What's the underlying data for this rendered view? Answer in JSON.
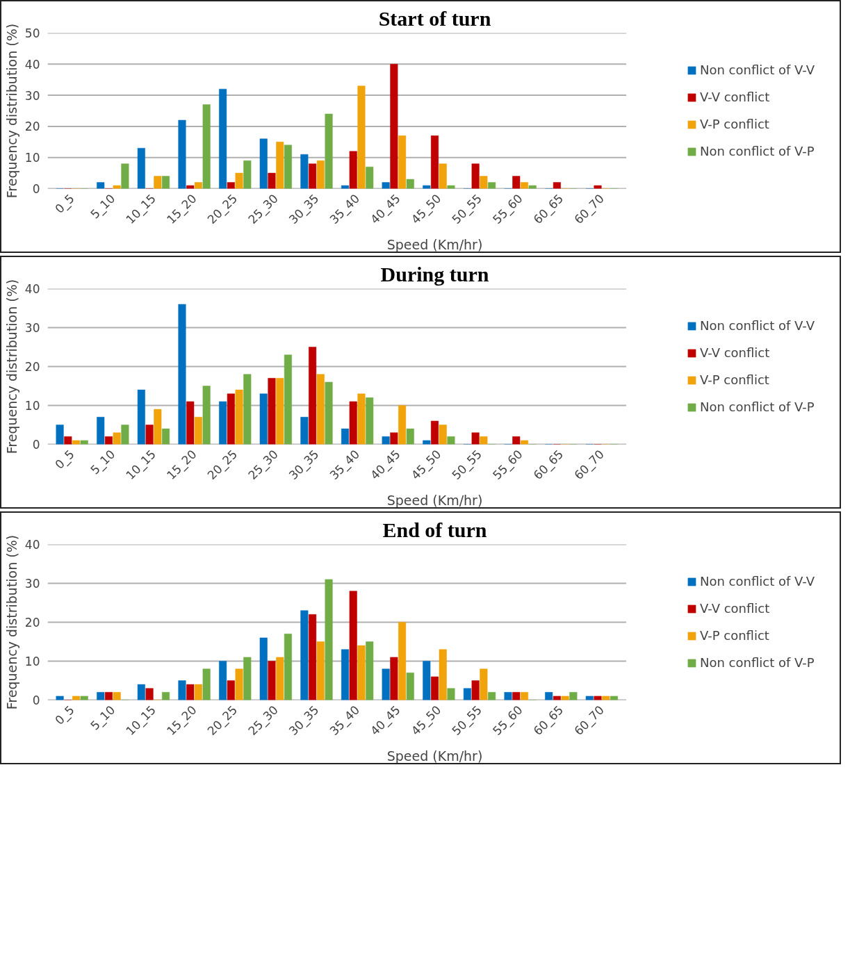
{
  "chart_data": [
    {
      "type": "bar",
      "title": "Start of turn",
      "xlabel": "Speed (Km/hr)",
      "ylabel": "Frequency distribution (%)",
      "categories": [
        "0_5",
        "5_10",
        "10_15",
        "15_20",
        "20_25",
        "25_30",
        "30_35",
        "35_40",
        "40_45",
        "45_50",
        "50_55",
        "55_60",
        "60_65",
        "60_70"
      ],
      "ylim": [
        0,
        50
      ],
      "yticks": [
        0,
        10,
        20,
        30,
        40,
        50
      ],
      "grid": "y",
      "legend": "right",
      "series": [
        {
          "name": "Non conflict of V-V",
          "color": "#0070c0",
          "values": [
            0,
            2,
            13,
            22,
            32,
            16,
            11,
            1,
            2,
            1,
            0,
            0,
            0,
            0
          ]
        },
        {
          "name": "V-V conflict",
          "color": "#c00000",
          "values": [
            0,
            0,
            0,
            1,
            2,
            5,
            8,
            12,
            40,
            17,
            8,
            4,
            2,
            1
          ]
        },
        {
          "name": "V-P conflict",
          "color": "#f0a30a",
          "values": [
            0,
            1,
            4,
            2,
            5,
            15,
            9,
            33,
            17,
            8,
            4,
            2,
            0,
            0
          ]
        },
        {
          "name": "Non conflict of V-P",
          "color": "#70ad47",
          "values": [
            0,
            8,
            4,
            27,
            9,
            14,
            24,
            7,
            3,
            1,
            2,
            1,
            0,
            0
          ]
        }
      ]
    },
    {
      "type": "bar",
      "title": "During turn",
      "xlabel": "Speed (Km/hr)",
      "ylabel": "Frequency distribution (%)",
      "categories": [
        "0_5",
        "5_10",
        "10_15",
        "15_20",
        "20_25",
        "25_30",
        "30_35",
        "35_40",
        "40_45",
        "45_50",
        "50_55",
        "55_60",
        "60_65",
        "60_70"
      ],
      "ylim": [
        0,
        40
      ],
      "yticks": [
        0,
        10,
        20,
        30,
        40
      ],
      "grid": "y",
      "legend": "right",
      "series": [
        {
          "name": "Non conflict of V-V",
          "color": "#0070c0",
          "values": [
            5,
            7,
            14,
            36,
            11,
            13,
            7,
            4,
            2,
            1,
            0,
            0,
            0,
            0
          ]
        },
        {
          "name": "V-V conflict",
          "color": "#c00000",
          "values": [
            2,
            2,
            5,
            11,
            13,
            17,
            25,
            11,
            3,
            6,
            3,
            2,
            0,
            0
          ]
        },
        {
          "name": "V-P conflict",
          "color": "#f0a30a",
          "values": [
            1,
            3,
            9,
            7,
            14,
            17,
            18,
            13,
            10,
            5,
            2,
            1,
            0,
            0
          ]
        },
        {
          "name": "Non conflict of V-P",
          "color": "#70ad47",
          "values": [
            1,
            5,
            4,
            15,
            18,
            23,
            16,
            12,
            4,
            2,
            0,
            0,
            0,
            0
          ]
        }
      ]
    },
    {
      "type": "bar",
      "title": "End of turn",
      "xlabel": "Speed (Km/hr)",
      "ylabel": "Frequency distribution (%)",
      "categories": [
        "0_5",
        "5_10",
        "10_15",
        "15_20",
        "20_25",
        "25_30",
        "30_35",
        "35_40",
        "40_45",
        "45_50",
        "50_55",
        "55_60",
        "60_65",
        "60_70"
      ],
      "ylim": [
        0,
        40
      ],
      "yticks": [
        0,
        10,
        20,
        30,
        40
      ],
      "grid": "y",
      "legend": "right",
      "series": [
        {
          "name": "Non conflict of V-V",
          "color": "#0070c0",
          "values": [
            1,
            2,
            4,
            5,
            10,
            16,
            23,
            13,
            8,
            10,
            3,
            2,
            2,
            1
          ]
        },
        {
          "name": "V-V conflict",
          "color": "#c00000",
          "values": [
            0,
            2,
            3,
            4,
            5,
            10,
            22,
            28,
            11,
            6,
            5,
            2,
            1,
            1
          ]
        },
        {
          "name": "V-P conflict",
          "color": "#f0a30a",
          "values": [
            1,
            2,
            0,
            4,
            8,
            11,
            15,
            14,
            20,
            13,
            8,
            2,
            1,
            1
          ]
        },
        {
          "name": "Non conflict of V-P",
          "color": "#70ad47",
          "values": [
            1,
            0,
            2,
            8,
            11,
            17,
            31,
            15,
            7,
            3,
            2,
            0,
            2,
            1
          ]
        }
      ]
    }
  ]
}
